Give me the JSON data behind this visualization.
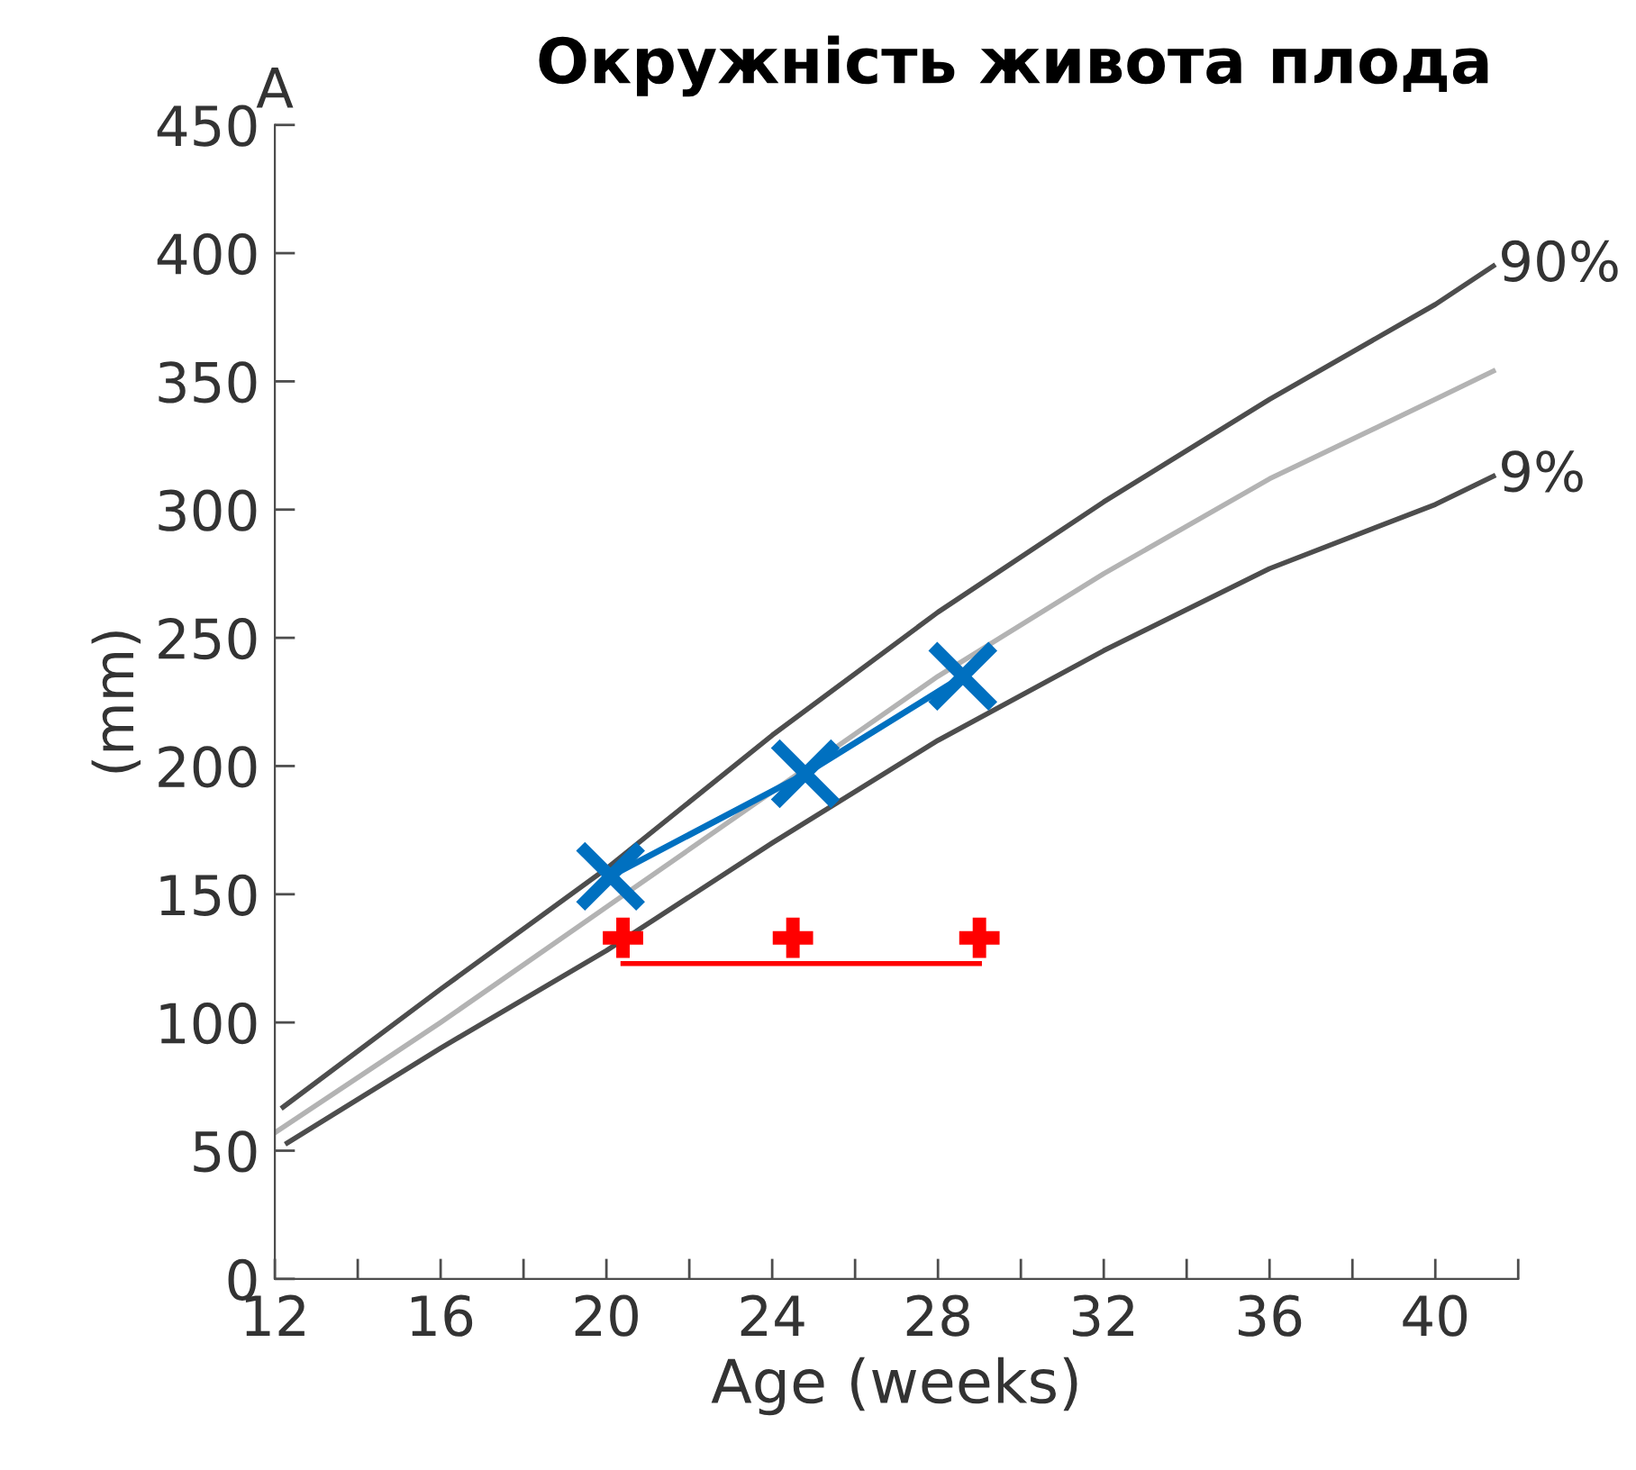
{
  "chart_data": {
    "type": "line",
    "title": "Окружність живота плода",
    "xlabel": "Age (weeks)",
    "ylabel": "(mm)",
    "xlim": [
      12,
      42
    ],
    "ylim": [
      0,
      450
    ],
    "xticks": [
      12,
      {
        "value": 14,
        "label": null
      },
      16,
      {
        "value": 18,
        "label": null
      },
      20,
      {
        "value": 22,
        "label": null
      },
      24,
      {
        "value": 26,
        "label": null
      },
      28,
      {
        "value": 30,
        "label": null
      },
      32,
      {
        "value": 34,
        "label": null
      },
      36,
      {
        "value": 38,
        "label": null
      },
      40,
      {
        "value": 42,
        "label": null
      }
    ],
    "yticks": [
      0,
      50,
      100,
      150,
      200,
      250,
      300,
      350,
      400,
      450
    ],
    "grid": false,
    "legend": false,
    "series": [
      {
        "color": "#4d4d4d",
        "x": [
          12.2,
          16,
          20,
          24,
          28,
          32,
          36,
          40,
          41.4
        ],
        "values": [
          67,
          113,
          160,
          212,
          260,
          303,
          343,
          380,
          395
        ],
        "marker": "none"
      },
      {
        "color": "#b3b3b3",
        "x": [
          12,
          16,
          20,
          24,
          28,
          32,
          36,
          40,
          41.4
        ],
        "values": [
          57,
          100,
          145,
          190,
          235,
          275,
          312,
          343,
          354
        ],
        "marker": "none"
      },
      {
        "color": "#4d4d4d",
        "x": [
          12.3,
          16,
          20,
          24,
          28,
          32,
          36,
          40,
          41.4
        ],
        "values": [
          53,
          90,
          128,
          170,
          210,
          245,
          277,
          302,
          313
        ],
        "marker": "none"
      },
      {
        "color": "#0070c0",
        "x": [
          20.1,
          24.8,
          28.6
        ],
        "values": [
          157,
          197,
          235
        ],
        "marker": "x"
      },
      {
        "color": "#ff0000",
        "type": "line",
        "x": [
          20.4,
          29.0
        ],
        "values": [
          123,
          123
        ],
        "marker": "none"
      },
      {
        "color": "#ff0000",
        "type": "scatter",
        "x": [
          20.4,
          24.5,
          29.0
        ],
        "values": [
          133,
          133,
          133
        ],
        "marker": "cross"
      }
    ],
    "annotations": [
      "A",
      {
        "text": "90%",
        "x": 41.4,
        "y": 395
      },
      {
        "text": "9%",
        "x": 41.4,
        "y": 313
      }
    ]
  }
}
